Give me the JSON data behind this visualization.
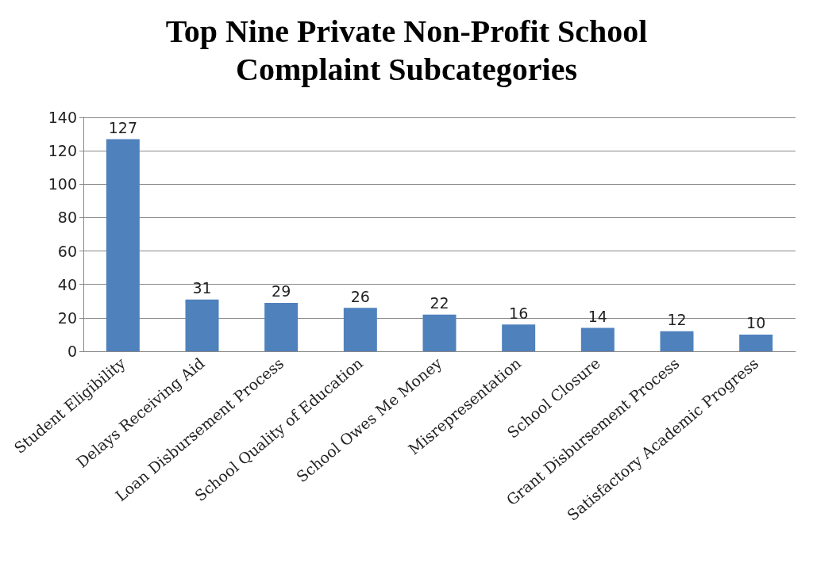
{
  "chart_data": {
    "type": "bar",
    "title": "Top Nine Private Non-Profit School\nComplaint Subcategories",
    "categories": [
      "Student Eligibility",
      "Delays Receiving Aid",
      "Loan Disbursement Process",
      "School Quality of Education",
      "School Owes Me Money",
      "Misrepresentation",
      "School Closure",
      "Grant Disbursement Process",
      "Satisfactory Academic Progress"
    ],
    "values": [
      127,
      31,
      29,
      26,
      22,
      16,
      14,
      12,
      10
    ],
    "color": "#4f81bd",
    "ylim": [
      0,
      140
    ],
    "yticks": [
      0,
      20,
      40,
      60,
      80,
      100,
      120,
      140
    ],
    "grid": "y",
    "data_labels": true
  }
}
